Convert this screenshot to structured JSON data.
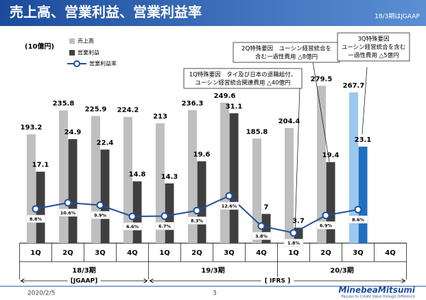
{
  "header": {
    "title": "売上高、営業利益、営業利益率",
    "note": "18/3期はJGAAP"
  },
  "chart_data": {
    "type": "bar",
    "unit": "(10億円)",
    "categories": [
      "1Q",
      "2Q",
      "3Q",
      "4Q",
      "1Q",
      "2Q",
      "3Q",
      "4Q",
      "1Q",
      "2Q",
      "3Q",
      "4Q"
    ],
    "periods": [
      "18/3期",
      "19/3期",
      "20/3期"
    ],
    "standards": [
      "[JGAAP]",
      "[ IFRS ]"
    ],
    "series": [
      {
        "name": "売上高",
        "color": "#bfbfbf",
        "colors": [
          "#bfbfbf",
          "#bfbfbf",
          "#bfbfbf",
          "#bfbfbf",
          "#bfbfbf",
          "#bfbfbf",
          "#bfbfbf",
          "#bfbfbf",
          "#bfbfbf",
          "#bfbfbf",
          "#9cc7f0",
          "#bfbfbf"
        ],
        "values": [
          193.2,
          235.8,
          225.9,
          224.2,
          213.0,
          236.3,
          249.6,
          185.8,
          204.4,
          279.5,
          267.7,
          null
        ]
      },
      {
        "name": "営業利益",
        "color": "#3f3f3f",
        "colors": [
          "#3f3f3f",
          "#3f3f3f",
          "#3f3f3f",
          "#3f3f3f",
          "#3f3f3f",
          "#3f3f3f",
          "#3f3f3f",
          "#3f3f3f",
          "#3f3f3f",
          "#3f3f3f",
          "#1f6fc0",
          "#3f3f3f"
        ],
        "values": [
          17.1,
          24.9,
          22.4,
          14.8,
          14.3,
          19.6,
          31.1,
          7.0,
          3.7,
          19.4,
          23.1,
          null
        ]
      },
      {
        "name": "営業利益率",
        "axis": "y2",
        "color": "#1f4e9c",
        "values": [
          8.8,
          10.6,
          9.9,
          6.6,
          6.7,
          8.3,
          12.6,
          3.8,
          1.8,
          6.9,
          8.6,
          null
        ],
        "value_labels": [
          "8.8%",
          "10.6%",
          "9.9%",
          "6.6%",
          "6.7%",
          "8.3%",
          "12.6%",
          "3.8%",
          "1.8%",
          "6.9%",
          "8.6%",
          null
        ]
      }
    ],
    "annotations": [
      {
        "lines": [
          "1Q特殊要因　タイ及び日本の退職給付、",
          "ユーシン経営統合関連費用 △40億円"
        ]
      },
      {
        "lines": [
          "2Q特殊要因　ユーシン経営統合を",
          "含む一過性費用 △8億円"
        ]
      },
      {
        "lines": [
          "3Q特殊要因",
          "ユーシン経営統合を含む",
          "一過性費用 △5億円"
        ]
      }
    ]
  },
  "footer": {
    "date": "2020/2/5",
    "page": "3",
    "brand": "MinebeaMitsumi",
    "tagline": "Passion to Create Value through Difference"
  }
}
